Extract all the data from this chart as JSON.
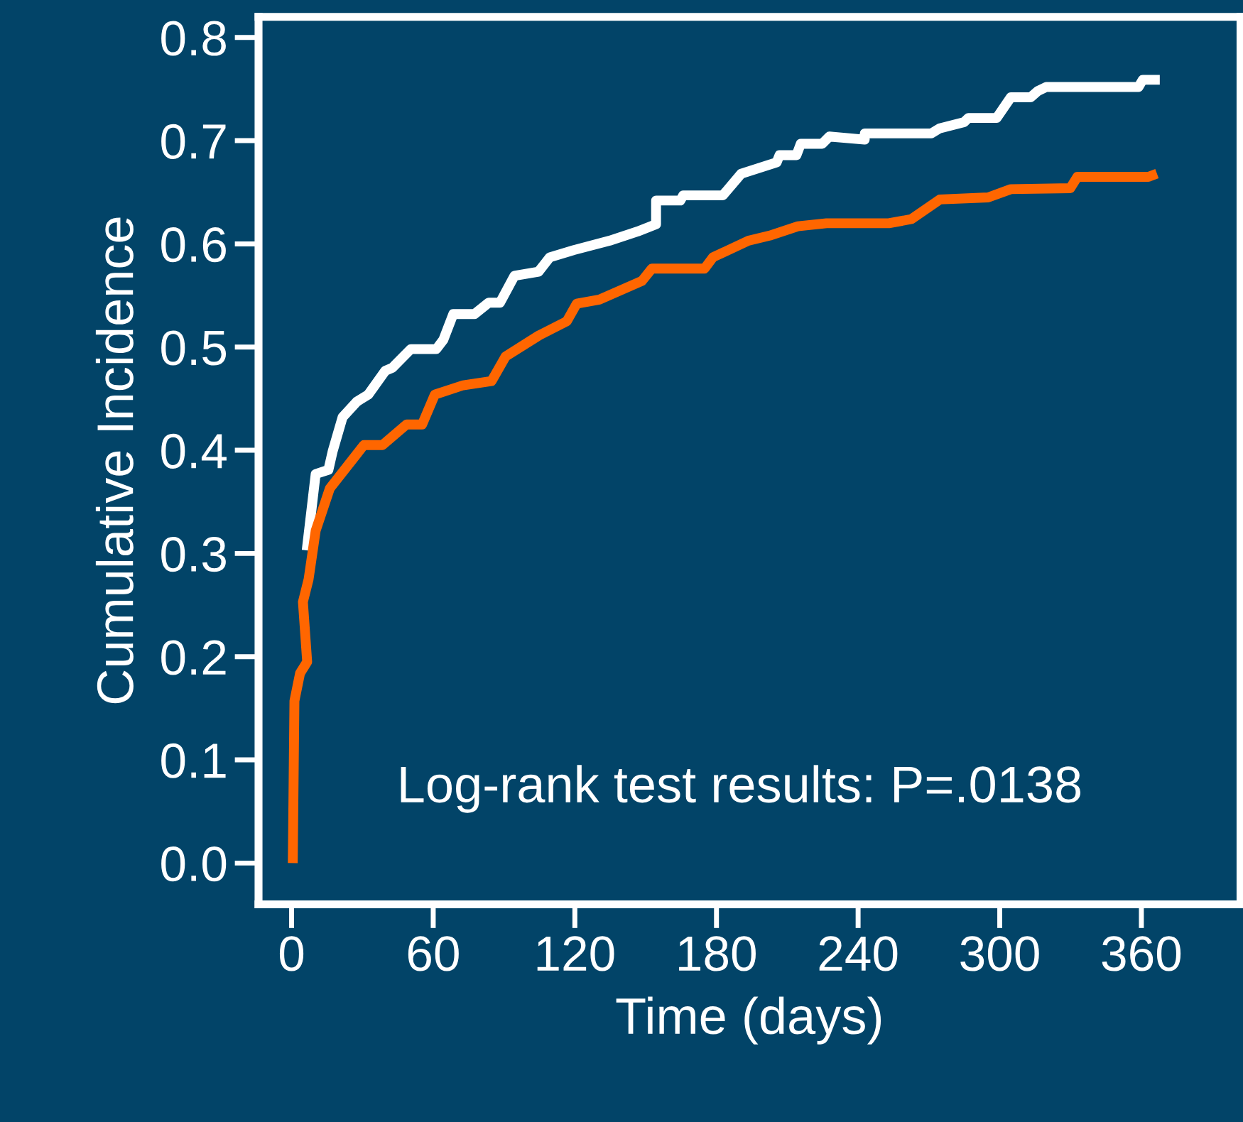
{
  "chart_data": {
    "type": "line",
    "xlabel": "Time (days)",
    "ylabel": "Cumulative Incidence",
    "xlim": [
      -14,
      402
    ],
    "xticks": [
      0,
      60,
      120,
      180,
      240,
      300,
      360
    ],
    "ylim": [
      -0.04,
      0.82
    ],
    "yticks": [
      {
        "value": 0,
        "label": "0.0"
      },
      0.1,
      0.2,
      0.3,
      0.4,
      0.5,
      0.6,
      0.7,
      0.8
    ],
    "grid": false,
    "marker": "none",
    "line_style": "solid",
    "annotations": [
      "Log-rank test results: P=.0138"
    ],
    "series": [
      {
        "color": "#ffffff",
        "x": [
          6.4,
          10.2,
          15.6,
          17.4,
          21.6,
          27.6,
          32.5,
          39.7,
          42.7,
          50.5,
          61.3,
          64.3,
          68.5,
          77.5,
          83.5,
          88.3,
          94.4,
          104.6,
          109.4,
          119.6,
          134.6,
          146.6,
          154.4,
          154.4,
          164.7,
          165.9,
          182.7,
          190.5,
          205.5,
          206.7,
          213.9,
          215.7,
          224.8,
          227.8,
          242.8,
          242.8,
          271.0,
          274.6,
          284.9,
          286.7,
          298.7,
          304.7,
          313.1,
          316.1,
          319.7,
          358.8,
          360.6,
          367.8
        ],
        "values": [
          0.303,
          0.377,
          0.381,
          0.399,
          0.432,
          0.447,
          0.454,
          0.477,
          0.48,
          0.498,
          0.498,
          0.507,
          0.532,
          0.532,
          0.543,
          0.543,
          0.569,
          0.573,
          0.587,
          0.594,
          0.603,
          0.612,
          0.619,
          0.642,
          0.642,
          0.647,
          0.647,
          0.668,
          0.679,
          0.686,
          0.686,
          0.697,
          0.697,
          0.704,
          0.701,
          0.707,
          0.707,
          0.712,
          0.718,
          0.722,
          0.722,
          0.742,
          0.742,
          0.748,
          0.752,
          0.752,
          0.759,
          0.759
        ]
      },
      {
        "color": "#ff6600",
        "x": [
          0.5,
          1.2,
          3.6,
          6.6,
          4.8,
          7.2,
          10.2,
          16.2,
          30.6,
          38.5,
          48.7,
          55.3,
          60.7,
          72.7,
          84.7,
          90.7,
          104.6,
          116.6,
          120.8,
          130.4,
          148.4,
          152.6,
          174.9,
          178.5,
          193.5,
          202.5,
          214.5,
          226.6,
          253.0,
          262.6,
          274.6,
          295.1,
          304.7,
          329.9,
          332.9,
          363.0,
          366.6
        ],
        "values": [
          0.0,
          0.157,
          0.184,
          0.195,
          0.253,
          0.275,
          0.322,
          0.363,
          0.405,
          0.405,
          0.425,
          0.425,
          0.454,
          0.463,
          0.467,
          0.491,
          0.511,
          0.525,
          0.542,
          0.546,
          0.564,
          0.576,
          0.576,
          0.587,
          0.603,
          0.608,
          0.617,
          0.62,
          0.62,
          0.624,
          0.643,
          0.645,
          0.653,
          0.654,
          0.665,
          0.665,
          0.668
        ]
      }
    ]
  }
}
